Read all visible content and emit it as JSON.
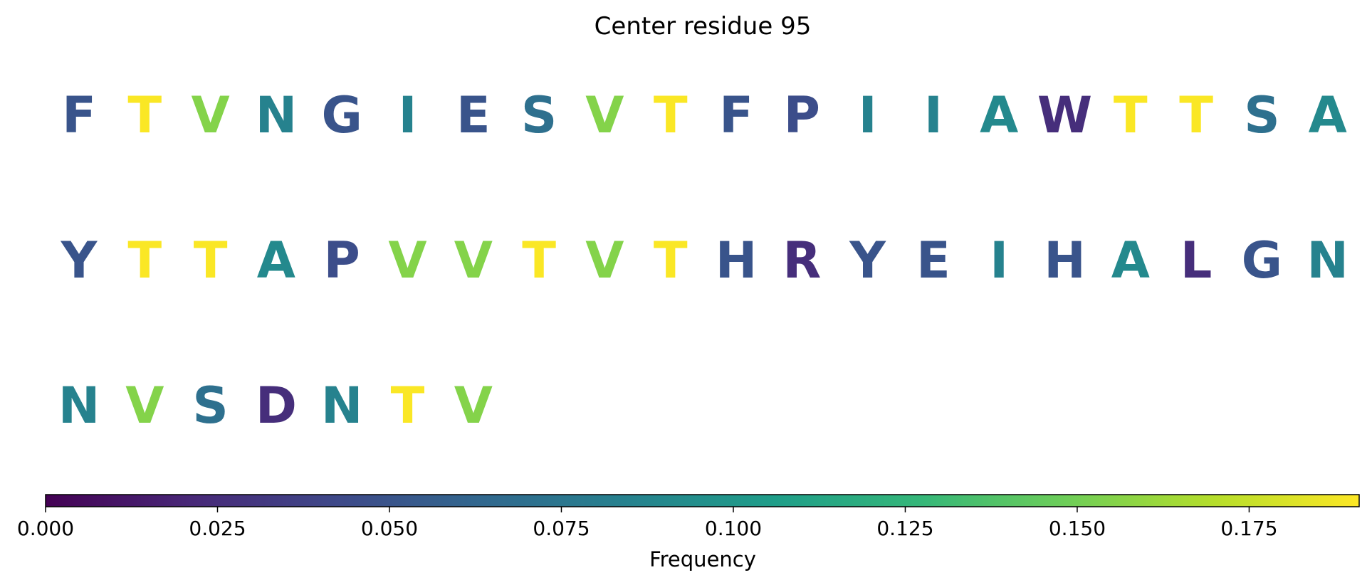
{
  "chart_data": {
    "type": "table",
    "title": "Center residue 95",
    "letters": [
      {
        "residue": "F",
        "frequency": 0.05
      },
      {
        "residue": "T",
        "frequency": 0.19
      },
      {
        "residue": "V",
        "frequency": 0.155
      },
      {
        "residue": "N",
        "frequency": 0.085
      },
      {
        "residue": "G",
        "frequency": 0.05
      },
      {
        "residue": "I",
        "frequency": 0.085
      },
      {
        "residue": "E",
        "frequency": 0.05
      },
      {
        "residue": "S",
        "frequency": 0.07
      },
      {
        "residue": "V",
        "frequency": 0.155
      },
      {
        "residue": "T",
        "frequency": 0.19
      },
      {
        "residue": "F",
        "frequency": 0.05
      },
      {
        "residue": "P",
        "frequency": 0.045
      },
      {
        "residue": "I",
        "frequency": 0.085
      },
      {
        "residue": "I",
        "frequency": 0.085
      },
      {
        "residue": "A",
        "frequency": 0.09
      },
      {
        "residue": "W",
        "frequency": 0.025
      },
      {
        "residue": "T",
        "frequency": 0.19
      },
      {
        "residue": "T",
        "frequency": 0.19
      },
      {
        "residue": "S",
        "frequency": 0.07
      },
      {
        "residue": "A",
        "frequency": 0.09
      },
      {
        "residue": "Y",
        "frequency": 0.05
      },
      {
        "residue": "T",
        "frequency": 0.19
      },
      {
        "residue": "T",
        "frequency": 0.19
      },
      {
        "residue": "A",
        "frequency": 0.09
      },
      {
        "residue": "P",
        "frequency": 0.045
      },
      {
        "residue": "V",
        "frequency": 0.155
      },
      {
        "residue": "V",
        "frequency": 0.155
      },
      {
        "residue": "T",
        "frequency": 0.19
      },
      {
        "residue": "V",
        "frequency": 0.155
      },
      {
        "residue": "T",
        "frequency": 0.19
      },
      {
        "residue": "H",
        "frequency": 0.05
      },
      {
        "residue": "R",
        "frequency": 0.025
      },
      {
        "residue": "Y",
        "frequency": 0.05
      },
      {
        "residue": "E",
        "frequency": 0.05
      },
      {
        "residue": "I",
        "frequency": 0.085
      },
      {
        "residue": "H",
        "frequency": 0.05
      },
      {
        "residue": "A",
        "frequency": 0.09
      },
      {
        "residue": "L",
        "frequency": 0.025
      },
      {
        "residue": "G",
        "frequency": 0.05
      },
      {
        "residue": "N",
        "frequency": 0.085
      },
      {
        "residue": "N",
        "frequency": 0.085
      },
      {
        "residue": "V",
        "frequency": 0.155
      },
      {
        "residue": "S",
        "frequency": 0.07
      },
      {
        "residue": "D",
        "frequency": 0.025
      },
      {
        "residue": "N",
        "frequency": 0.085
      },
      {
        "residue": "T",
        "frequency": 0.19
      },
      {
        "residue": "V",
        "frequency": 0.155
      }
    ],
    "letters_per_row": 20,
    "colorbar": {
      "label": "Frequency",
      "range": [
        0,
        0.191
      ],
      "ticks": [
        0.0,
        0.025,
        0.05,
        0.075,
        0.1,
        0.125,
        0.15,
        0.175
      ],
      "tick_labels": [
        "0.000",
        "0.025",
        "0.050",
        "0.075",
        "0.100",
        "0.125",
        "0.150",
        "0.175"
      ],
      "colormap": [
        "#440154",
        "#482878",
        "#3e4989",
        "#31688e",
        "#26828e",
        "#1f9e89",
        "#35b779",
        "#6ece58",
        "#b5de2b",
        "#fde725"
      ]
    }
  }
}
